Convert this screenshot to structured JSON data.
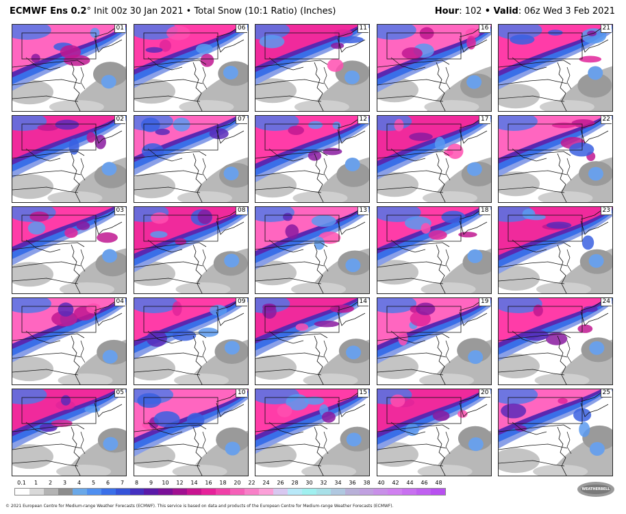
{
  "header": {
    "model": "ECMWF Ens 0.2",
    "degree": "°",
    "init": " Init 00z 30 Jan 2021",
    "bullet": " • ",
    "product": "Total Snow (10:1 Ratio) (Inches)",
    "hour_label": "Hour",
    "hour_value": ": 102 ",
    "valid_label": "• Valid",
    "valid_value": ": 06z Wed 3 Feb 2021"
  },
  "members": [
    "01",
    "06",
    "11",
    "16",
    "21",
    "02",
    "07",
    "12",
    "17",
    "22",
    "03",
    "08",
    "13",
    "18",
    "23",
    "04",
    "09",
    "14",
    "19",
    "24",
    "05",
    "10",
    "15",
    "20",
    "25"
  ],
  "legend": {
    "ticks": [
      "0.1",
      "1",
      "2",
      "3",
      "4",
      "5",
      "6",
      "7",
      "8",
      "9",
      "10",
      "12",
      "14",
      "16",
      "18",
      "20",
      "22",
      "24",
      "26",
      "28",
      "30",
      "32",
      "34",
      "36",
      "38",
      "40",
      "42",
      "44",
      "46",
      "48"
    ],
    "colors": [
      "#ffffff",
      "#d9d9d9",
      "#b3b3b3",
      "#8c8c8c",
      "#6aa8e8",
      "#4f8ff0",
      "#3a6fe8",
      "#3553d8",
      "#4430c0",
      "#5a1aa8",
      "#7a1098",
      "#a01090",
      "#c81490",
      "#e6229a",
      "#f040a8",
      "#f560b8",
      "#f880c8",
      "#fba0d8",
      "#d8c8f0",
      "#b8e8f8",
      "#a0f0f0",
      "#a8e0e8",
      "#b0c8e0",
      "#b8b0d8",
      "#c0a0e0",
      "#c890e8",
      "#d080f0",
      "#c870f0",
      "#c060f0",
      "#b850f0"
    ]
  },
  "logo": "WEATHERBELL",
  "footer": "© 2021 European Centre for Medium-range Weather Forecasts (ECMWF). This service is based on data and products of the European Centre for Medium-range Weather Forecasts (ECMWF)."
}
